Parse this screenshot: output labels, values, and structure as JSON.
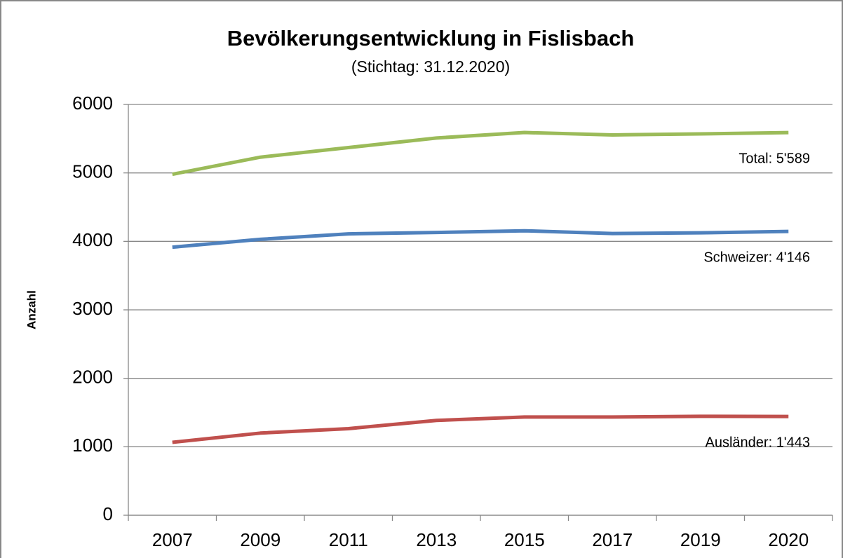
{
  "chart_data": {
    "type": "line",
    "title": "Bevölkerungsentwicklung in Fislisbach",
    "subtitle": "(Stichtag: 31.12.2020)",
    "y_label": "Anzahl",
    "categories": [
      "2007",
      "2009",
      "2011",
      "2013",
      "2015",
      "2017",
      "2019",
      "2020"
    ],
    "series": [
      {
        "label": "Total: 5'589",
        "color": "#9bbb59",
        "values": [
          4980,
          5230,
          5370,
          5510,
          5590,
          5555,
          5570,
          5589
        ]
      },
      {
        "label": "Schweizer: 4'146",
        "color": "#4f81bd",
        "values": [
          3915,
          4030,
          4110,
          4130,
          4155,
          4115,
          4125,
          4146
        ]
      },
      {
        "label": "Ausländer: 1'443",
        "color": "#c0504d",
        "values": [
          1065,
          1200,
          1265,
          1385,
          1435,
          1435,
          1445,
          1443
        ]
      }
    ],
    "ylim": [
      0,
      6000
    ],
    "yticks": [
      0,
      1000,
      2000,
      3000,
      4000,
      5000,
      6000
    ],
    "grid": true
  }
}
